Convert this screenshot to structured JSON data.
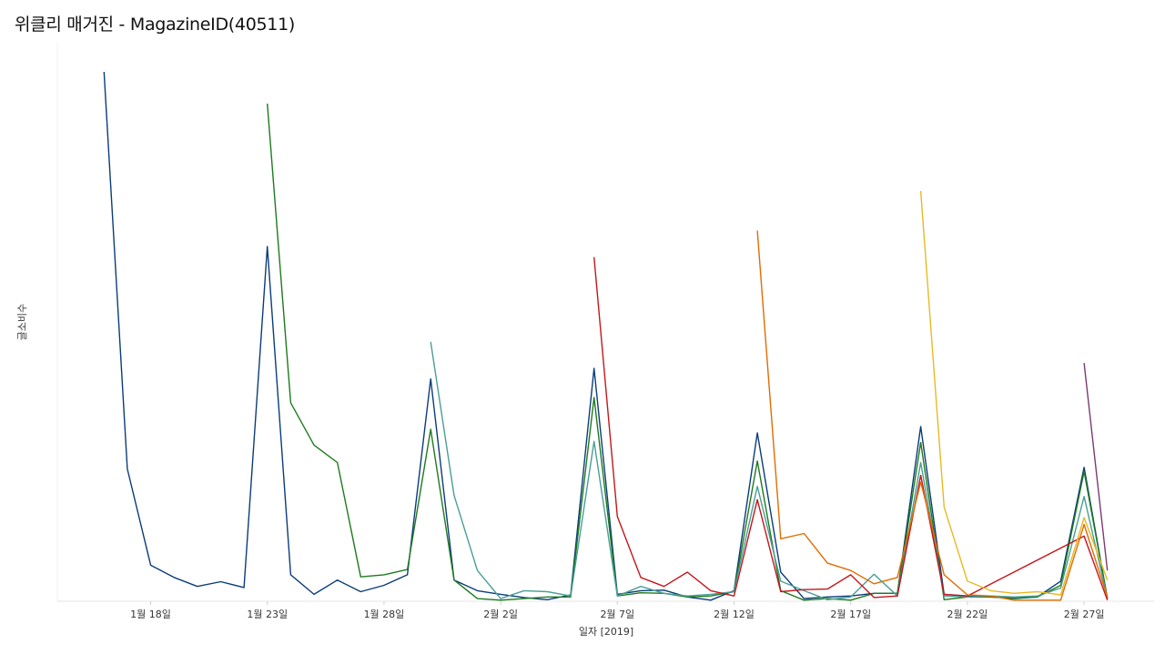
{
  "title": "위클리 매거진 - MagazineID(40511)",
  "chart_data": {
    "type": "line",
    "xlabel": "일자 [2019]",
    "ylabel": "글소비수",
    "x_domain": [
      "2019-01-14",
      "2019-03-02"
    ],
    "ylim": [
      0,
      100
    ],
    "grid": false,
    "legend": "none",
    "x_ticks": [
      {
        "date": "2019-01-18",
        "label": "1월 18일"
      },
      {
        "date": "2019-01-23",
        "label": "1월 23일"
      },
      {
        "date": "2019-01-28",
        "label": "1월 28일"
      },
      {
        "date": "2019-02-02",
        "label": "2월 2일"
      },
      {
        "date": "2019-02-07",
        "label": "2월 7일"
      },
      {
        "date": "2019-02-12",
        "label": "2월 12일"
      },
      {
        "date": "2019-02-17",
        "label": "2월 17일"
      },
      {
        "date": "2019-02-22",
        "label": "2월 22일"
      },
      {
        "date": "2019-02-27",
        "label": "2월 27일"
      }
    ],
    "series": [
      {
        "color": "#0b3c7a",
        "points": [
          [
            "2019-01-16",
            100
          ],
          [
            "2019-01-17",
            25
          ],
          [
            "2019-01-18",
            6.8
          ],
          [
            "2019-01-19",
            4.5
          ],
          [
            "2019-01-20",
            2.8
          ],
          [
            "2019-01-21",
            3.7
          ],
          [
            "2019-01-22",
            2.6
          ],
          [
            "2019-01-23",
            67
          ],
          [
            "2019-01-24",
            5
          ],
          [
            "2019-01-25",
            1.3
          ],
          [
            "2019-01-26",
            4
          ],
          [
            "2019-01-27",
            1.8
          ],
          [
            "2019-01-28",
            3
          ],
          [
            "2019-01-29",
            5
          ],
          [
            "2019-01-30",
            42
          ],
          [
            "2019-01-31",
            4
          ],
          [
            "2019-02-01",
            2
          ],
          [
            "2019-02-02",
            1.3
          ],
          [
            "2019-02-03",
            0.7
          ],
          [
            "2019-02-04",
            0.3
          ],
          [
            "2019-02-05",
            1.2
          ],
          [
            "2019-02-06",
            44
          ],
          [
            "2019-02-07",
            1.3
          ],
          [
            "2019-02-08",
            2
          ],
          [
            "2019-02-09",
            2.1
          ],
          [
            "2019-02-10",
            0.8
          ],
          [
            "2019-02-11",
            0.2
          ],
          [
            "2019-02-12",
            2
          ],
          [
            "2019-02-13",
            31.8
          ],
          [
            "2019-02-14",
            5.5
          ],
          [
            "2019-02-15",
            0.5
          ],
          [
            "2019-02-16",
            0.8
          ],
          [
            "2019-02-17",
            1
          ],
          [
            "2019-02-18",
            1.5
          ],
          [
            "2019-02-19",
            1.5
          ],
          [
            "2019-02-20",
            33
          ],
          [
            "2019-02-21",
            1.3
          ],
          [
            "2019-02-22",
            1
          ],
          [
            "2019-02-23",
            0.8
          ],
          [
            "2019-02-24",
            0.5
          ],
          [
            "2019-02-25",
            0.8
          ],
          [
            "2019-02-26",
            3.8
          ],
          [
            "2019-02-27",
            25.3
          ],
          [
            "2019-02-28",
            0.5
          ]
        ]
      },
      {
        "color": "#1e7a1e",
        "points": [
          [
            "2019-01-23",
            94
          ],
          [
            "2019-01-24",
            37.5
          ],
          [
            "2019-01-25",
            29.5
          ],
          [
            "2019-01-26",
            26.2
          ],
          [
            "2019-01-27",
            4.6
          ],
          [
            "2019-01-28",
            5
          ],
          [
            "2019-01-29",
            6
          ],
          [
            "2019-01-30",
            32.5
          ],
          [
            "2019-01-31",
            4
          ],
          [
            "2019-02-01",
            0.5
          ],
          [
            "2019-02-02",
            0.2
          ],
          [
            "2019-02-03",
            0.5
          ],
          [
            "2019-02-04",
            0.8
          ],
          [
            "2019-02-05",
            0.8
          ],
          [
            "2019-02-06",
            38.5
          ],
          [
            "2019-02-07",
            1
          ],
          [
            "2019-02-08",
            1.6
          ],
          [
            "2019-02-09",
            1.5
          ],
          [
            "2019-02-10",
            0.8
          ],
          [
            "2019-02-11",
            1
          ],
          [
            "2019-02-12",
            1.8
          ],
          [
            "2019-02-13",
            26.5
          ],
          [
            "2019-02-14",
            2
          ],
          [
            "2019-02-15",
            0.2
          ],
          [
            "2019-02-16",
            0.5
          ],
          [
            "2019-02-17",
            0.2
          ],
          [
            "2019-02-18",
            1.5
          ],
          [
            "2019-02-19",
            1.5
          ],
          [
            "2019-02-20",
            30
          ],
          [
            "2019-02-21",
            0.3
          ],
          [
            "2019-02-22",
            0.8
          ],
          [
            "2019-02-23",
            0.8
          ],
          [
            "2019-02-24",
            0.6
          ],
          [
            "2019-02-25",
            0.8
          ],
          [
            "2019-02-26",
            3
          ],
          [
            "2019-02-27",
            24.5
          ],
          [
            "2019-02-28",
            0.6
          ]
        ]
      },
      {
        "color": "#4a9e96",
        "points": [
          [
            "2019-01-30",
            49
          ],
          [
            "2019-01-31",
            20
          ],
          [
            "2019-02-01",
            5.8
          ],
          [
            "2019-02-02",
            0.5
          ],
          [
            "2019-02-03",
            2
          ],
          [
            "2019-02-04",
            1.8
          ],
          [
            "2019-02-05",
            1
          ],
          [
            "2019-02-06",
            30.2
          ],
          [
            "2019-02-07",
            1
          ],
          [
            "2019-02-08",
            2.8
          ],
          [
            "2019-02-09",
            1.5
          ],
          [
            "2019-02-10",
            1
          ],
          [
            "2019-02-11",
            1.3
          ],
          [
            "2019-02-12",
            1.8
          ],
          [
            "2019-02-13",
            21.7
          ],
          [
            "2019-02-14",
            3.8
          ],
          [
            "2019-02-15",
            2
          ],
          [
            "2019-02-16",
            0.3
          ],
          [
            "2019-02-17",
            0.8
          ],
          [
            "2019-02-18",
            5.1
          ],
          [
            "2019-02-19",
            1
          ],
          [
            "2019-02-20",
            26.2
          ],
          [
            "2019-02-21",
            1
          ],
          [
            "2019-02-22",
            0.8
          ],
          [
            "2019-02-23",
            1
          ],
          [
            "2019-02-24",
            0.8
          ],
          [
            "2019-02-25",
            1
          ],
          [
            "2019-02-26",
            2.5
          ],
          [
            "2019-02-27",
            19.8
          ],
          [
            "2019-02-28",
            0.6
          ]
        ]
      },
      {
        "color": "#c4161c",
        "points": [
          [
            "2019-02-06",
            65
          ],
          [
            "2019-02-07",
            16
          ],
          [
            "2019-02-08",
            4.5
          ],
          [
            "2019-02-09",
            2.8
          ],
          [
            "2019-02-10",
            5.5
          ],
          [
            "2019-02-11",
            2
          ],
          [
            "2019-02-12",
            1
          ],
          [
            "2019-02-13",
            19.2
          ],
          [
            "2019-02-14",
            1.8
          ],
          [
            "2019-02-15",
            2.2
          ],
          [
            "2019-02-16",
            2.3
          ],
          [
            "2019-02-17",
            5
          ],
          [
            "2019-02-18",
            0.7
          ],
          [
            "2019-02-19",
            1
          ],
          [
            "2019-02-20",
            23.8
          ],
          [
            "2019-02-21",
            1.3
          ],
          [
            "2019-02-22",
            1
          ],
          [
            "2019-02-27",
            12.3
          ],
          [
            "2019-02-28",
            0.2
          ]
        ]
      },
      {
        "color": "#e06c00",
        "points": [
          [
            "2019-02-13",
            70
          ],
          [
            "2019-02-14",
            11.8
          ],
          [
            "2019-02-15",
            12.8
          ],
          [
            "2019-02-16",
            7.2
          ],
          [
            "2019-02-17",
            5.8
          ],
          [
            "2019-02-18",
            3.3
          ],
          [
            "2019-02-19",
            4.5
          ],
          [
            "2019-02-20",
            22.5
          ],
          [
            "2019-02-21",
            5
          ],
          [
            "2019-02-22",
            1.2
          ],
          [
            "2019-02-23",
            1
          ],
          [
            "2019-02-24",
            0.2
          ],
          [
            "2019-02-25",
            0.2
          ],
          [
            "2019-02-26",
            0.2
          ],
          [
            "2019-02-27",
            14.5
          ],
          [
            "2019-02-28",
            0.8
          ]
        ]
      },
      {
        "color": "#e8b923",
        "points": [
          [
            "2019-02-20",
            77.5
          ],
          [
            "2019-02-21",
            17.8
          ],
          [
            "2019-02-22",
            3.8
          ],
          [
            "2019-02-23",
            2
          ],
          [
            "2019-02-24",
            1.5
          ],
          [
            "2019-02-25",
            1.8
          ],
          [
            "2019-02-26",
            1.2
          ],
          [
            "2019-02-27",
            15.8
          ],
          [
            "2019-02-28",
            4
          ]
        ]
      },
      {
        "color": "#7a3b6e",
        "points": [
          [
            "2019-02-27",
            45
          ],
          [
            "2019-02-28",
            5.8
          ]
        ]
      }
    ]
  }
}
